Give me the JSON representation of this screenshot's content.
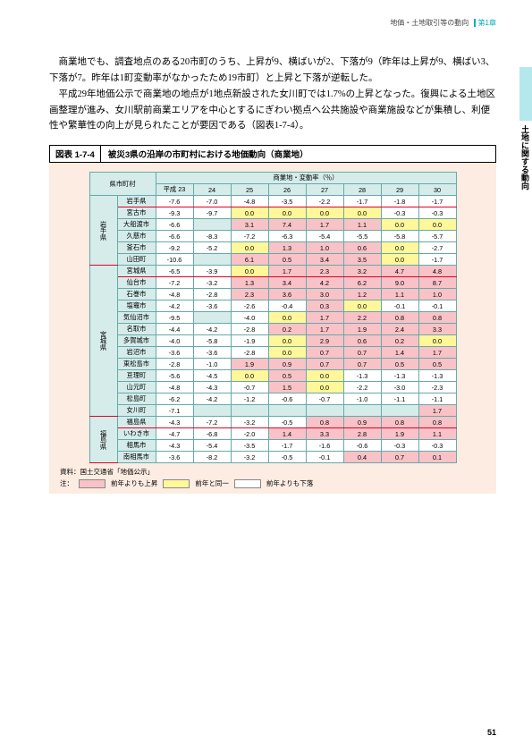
{
  "header": {
    "breadcrumb": "地価・土地取引等の動向",
    "chapter": "第1章"
  },
  "side_label": "土地に関する動向",
  "body": {
    "p1": "商業地でも、調査地点のある20市町のうち、上昇が9、横ばいが2、下落が9（昨年は上昇が9、横ばい3、下落が7。昨年は1町変動率がなかったため19市町）と上昇と下落が逆転した。",
    "p2": "平成29年地価公示で商業地の地点が1地点新設された女川町では1.7%の上昇となった。復興による土地区画整理が進み、女川駅前商業エリアを中心とするにぎわい拠点へ公共施設や商業施設などが集積し、利便性や繁華性の向上が見られたことが要因である（図表1-7-4）。"
  },
  "figure": {
    "number": "図表 1-7-4",
    "title": "被災3県の沿岸の市町村における地価動向（商業地）"
  },
  "table": {
    "top_header": {
      "c1": "県市町村",
      "c2": "商業地・変動率（％）"
    },
    "year_header": [
      "平成 23",
      "24",
      "25",
      "26",
      "27",
      "28",
      "29",
      "30"
    ],
    "groups": [
      {
        "pref": "岩手県",
        "hl_idx": 0,
        "rows": [
          {
            "city": "岩手県",
            "v": [
              {
                "t": "-7.6",
                "c": "d"
              },
              {
                "t": "-7.0",
                "c": "d"
              },
              {
                "t": "-4.8",
                "c": "d"
              },
              {
                "t": "-3.5",
                "c": "d"
              },
              {
                "t": "-2.2",
                "c": "d"
              },
              {
                "t": "-1.7",
                "c": "d"
              },
              {
                "t": "-1.8",
                "c": "d"
              },
              {
                "t": "-1.7",
                "c": "d"
              }
            ]
          },
          {
            "city": "宮古市",
            "v": [
              {
                "t": "-9.3",
                "c": "d"
              },
              {
                "t": "-9.7",
                "c": "d"
              },
              {
                "t": "0.0",
                "c": "f"
              },
              {
                "t": "0.0",
                "c": "f"
              },
              {
                "t": "0.0",
                "c": "f"
              },
              {
                "t": "0.0",
                "c": "f"
              },
              {
                "t": "-0.3",
                "c": "d"
              },
              {
                "t": "-0.3",
                "c": "d"
              }
            ]
          },
          {
            "city": "大船渡市",
            "v": [
              {
                "t": "-6.6",
                "c": "d"
              },
              {
                "t": "",
                "c": "n"
              },
              {
                "t": "3.1",
                "c": "u"
              },
              {
                "t": "7.4",
                "c": "u"
              },
              {
                "t": "1.7",
                "c": "u"
              },
              {
                "t": "1.1",
                "c": "u"
              },
              {
                "t": "0.0",
                "c": "f"
              },
              {
                "t": "0.0",
                "c": "f"
              }
            ]
          },
          {
            "city": "久慈市",
            "v": [
              {
                "t": "-6.6",
                "c": "d"
              },
              {
                "t": "-8.3",
                "c": "d"
              },
              {
                "t": "-7.2",
                "c": "d"
              },
              {
                "t": "-6.3",
                "c": "d"
              },
              {
                "t": "-5.4",
                "c": "d"
              },
              {
                "t": "-5.5",
                "c": "d"
              },
              {
                "t": "-5.8",
                "c": "d"
              },
              {
                "t": "-5.7",
                "c": "d"
              }
            ]
          },
          {
            "city": "釜石市",
            "v": [
              {
                "t": "-9.2",
                "c": "d"
              },
              {
                "t": "-5.2",
                "c": "d"
              },
              {
                "t": "0.0",
                "c": "f"
              },
              {
                "t": "1.3",
                "c": "u"
              },
              {
                "t": "1.0",
                "c": "u"
              },
              {
                "t": "0.6",
                "c": "u"
              },
              {
                "t": "0.0",
                "c": "f"
              },
              {
                "t": "-2.7",
                "c": "d"
              }
            ]
          },
          {
            "city": "山田町",
            "v": [
              {
                "t": "-10.6",
                "c": "d"
              },
              {
                "t": "",
                "c": "n"
              },
              {
                "t": "6.1",
                "c": "u"
              },
              {
                "t": "0.5",
                "c": "u"
              },
              {
                "t": "3.4",
                "c": "u"
              },
              {
                "t": "3.5",
                "c": "u"
              },
              {
                "t": "0.0",
                "c": "f"
              },
              {
                "t": "-1.7",
                "c": "d"
              }
            ]
          }
        ]
      },
      {
        "pref": "宮城県",
        "hl_idx": 0,
        "rows": [
          {
            "city": "宮城県",
            "v": [
              {
                "t": "-6.5",
                "c": "d"
              },
              {
                "t": "-3.9",
                "c": "d"
              },
              {
                "t": "0.0",
                "c": "f"
              },
              {
                "t": "1.7",
                "c": "u"
              },
              {
                "t": "2.3",
                "c": "u"
              },
              {
                "t": "3.2",
                "c": "u"
              },
              {
                "t": "4.7",
                "c": "u"
              },
              {
                "t": "4.8",
                "c": "u"
              }
            ]
          },
          {
            "city": "仙台市",
            "v": [
              {
                "t": "-7.2",
                "c": "d"
              },
              {
                "t": "-3.2",
                "c": "d"
              },
              {
                "t": "1.3",
                "c": "u"
              },
              {
                "t": "3.4",
                "c": "u"
              },
              {
                "t": "4.2",
                "c": "u"
              },
              {
                "t": "6.2",
                "c": "u"
              },
              {
                "t": "9.0",
                "c": "u"
              },
              {
                "t": "8.7",
                "c": "u"
              }
            ]
          },
          {
            "city": "石巻市",
            "v": [
              {
                "t": "-4.8",
                "c": "d"
              },
              {
                "t": "-2.8",
                "c": "d"
              },
              {
                "t": "2.3",
                "c": "u"
              },
              {
                "t": "3.6",
                "c": "u"
              },
              {
                "t": "3.0",
                "c": "u"
              },
              {
                "t": "1.2",
                "c": "u"
              },
              {
                "t": "1.1",
                "c": "u"
              },
              {
                "t": "1.0",
                "c": "u"
              }
            ]
          },
          {
            "city": "塩竈市",
            "v": [
              {
                "t": "-4.2",
                "c": "d"
              },
              {
                "t": "-3.6",
                "c": "d"
              },
              {
                "t": "-2.6",
                "c": "d"
              },
              {
                "t": "-0.4",
                "c": "d"
              },
              {
                "t": "0.3",
                "c": "u"
              },
              {
                "t": "0.0",
                "c": "f"
              },
              {
                "t": "-0.1",
                "c": "d"
              },
              {
                "t": "-0.1",
                "c": "d"
              }
            ]
          },
          {
            "city": "気仙沼市",
            "v": [
              {
                "t": "-9.5",
                "c": "d"
              },
              {
                "t": "",
                "c": "n"
              },
              {
                "t": "-4.0",
                "c": "d"
              },
              {
                "t": "0.0",
                "c": "f"
              },
              {
                "t": "1.7",
                "c": "u"
              },
              {
                "t": "2.2",
                "c": "u"
              },
              {
                "t": "0.8",
                "c": "u"
              },
              {
                "t": "0.8",
                "c": "u"
              }
            ]
          },
          {
            "city": "名取市",
            "v": [
              {
                "t": "-4.4",
                "c": "d"
              },
              {
                "t": "-4.2",
                "c": "d"
              },
              {
                "t": "-2.8",
                "c": "d"
              },
              {
                "t": "0.2",
                "c": "u"
              },
              {
                "t": "1.7",
                "c": "u"
              },
              {
                "t": "1.9",
                "c": "u"
              },
              {
                "t": "2.4",
                "c": "u"
              },
              {
                "t": "3.3",
                "c": "u"
              }
            ]
          },
          {
            "city": "多賀城市",
            "v": [
              {
                "t": "-4.0",
                "c": "d"
              },
              {
                "t": "-5.8",
                "c": "d"
              },
              {
                "t": "-1.9",
                "c": "d"
              },
              {
                "t": "0.0",
                "c": "f"
              },
              {
                "t": "2.9",
                "c": "u"
              },
              {
                "t": "0.6",
                "c": "u"
              },
              {
                "t": "0.2",
                "c": "u"
              },
              {
                "t": "0.0",
                "c": "f"
              }
            ]
          },
          {
            "city": "岩沼市",
            "v": [
              {
                "t": "-3.6",
                "c": "d"
              },
              {
                "t": "-3.6",
                "c": "d"
              },
              {
                "t": "-2.8",
                "c": "d"
              },
              {
                "t": "0.0",
                "c": "f"
              },
              {
                "t": "0.7",
                "c": "u"
              },
              {
                "t": "0.7",
                "c": "u"
              },
              {
                "t": "1.4",
                "c": "u"
              },
              {
                "t": "1.7",
                "c": "u"
              }
            ]
          },
          {
            "city": "東松島市",
            "v": [
              {
                "t": "-2.8",
                "c": "d"
              },
              {
                "t": "-1.0",
                "c": "d"
              },
              {
                "t": "1.9",
                "c": "u"
              },
              {
                "t": "0.9",
                "c": "u"
              },
              {
                "t": "0.7",
                "c": "u"
              },
              {
                "t": "0.7",
                "c": "u"
              },
              {
                "t": "0.5",
                "c": "u"
              },
              {
                "t": "0.5",
                "c": "u"
              }
            ]
          },
          {
            "city": "亘理町",
            "v": [
              {
                "t": "-5.6",
                "c": "d"
              },
              {
                "t": "-4.5",
                "c": "d"
              },
              {
                "t": "0.0",
                "c": "f"
              },
              {
                "t": "0.5",
                "c": "u"
              },
              {
                "t": "0.0",
                "c": "f"
              },
              {
                "t": "-1.3",
                "c": "d"
              },
              {
                "t": "-1.3",
                "c": "d"
              },
              {
                "t": "-1.3",
                "c": "d"
              }
            ]
          },
          {
            "city": "山元町",
            "v": [
              {
                "t": "-4.8",
                "c": "d"
              },
              {
                "t": "-4.3",
                "c": "d"
              },
              {
                "t": "-0.7",
                "c": "d"
              },
              {
                "t": "1.5",
                "c": "u"
              },
              {
                "t": "0.0",
                "c": "f"
              },
              {
                "t": "-2.2",
                "c": "d"
              },
              {
                "t": "-3.0",
                "c": "d"
              },
              {
                "t": "-2.3",
                "c": "d"
              }
            ]
          },
          {
            "city": "松島町",
            "v": [
              {
                "t": "-6.2",
                "c": "d"
              },
              {
                "t": "-4.2",
                "c": "d"
              },
              {
                "t": "-1.2",
                "c": "d"
              },
              {
                "t": "-0.6",
                "c": "d"
              },
              {
                "t": "-0.7",
                "c": "d"
              },
              {
                "t": "-1.0",
                "c": "d"
              },
              {
                "t": "-1.1",
                "c": "d"
              },
              {
                "t": "-1.1",
                "c": "d"
              }
            ]
          },
          {
            "city": "女川町",
            "v": [
              {
                "t": "-7.1",
                "c": "d"
              },
              {
                "t": "",
                "c": "n"
              },
              {
                "t": "",
                "c": "n"
              },
              {
                "t": "",
                "c": "n"
              },
              {
                "t": "",
                "c": "n"
              },
              {
                "t": "",
                "c": "n"
              },
              {
                "t": "",
                "c": "n"
              },
              {
                "t": "1.7",
                "c": "u"
              }
            ]
          }
        ]
      },
      {
        "pref": "福島県",
        "hl_idx": 0,
        "rows": [
          {
            "city": "福島県",
            "v": [
              {
                "t": "-4.3",
                "c": "d"
              },
              {
                "t": "-7.2",
                "c": "d"
              },
              {
                "t": "-3.2",
                "c": "d"
              },
              {
                "t": "-0.5",
                "c": "d"
              },
              {
                "t": "0.8",
                "c": "u"
              },
              {
                "t": "0.9",
                "c": "u"
              },
              {
                "t": "0.8",
                "c": "u"
              },
              {
                "t": "0.8",
                "c": "u"
              }
            ]
          },
          {
            "city": "いわき市",
            "v": [
              {
                "t": "-4.7",
                "c": "d"
              },
              {
                "t": "-6.8",
                "c": "d"
              },
              {
                "t": "-2.0",
                "c": "d"
              },
              {
                "t": "1.4",
                "c": "u"
              },
              {
                "t": "3.3",
                "c": "u"
              },
              {
                "t": "2.8",
                "c": "u"
              },
              {
                "t": "1.9",
                "c": "u"
              },
              {
                "t": "1.1",
                "c": "u"
              }
            ]
          },
          {
            "city": "相馬市",
            "v": [
              {
                "t": "-4.3",
                "c": "d"
              },
              {
                "t": "-5.4",
                "c": "d"
              },
              {
                "t": "-3.5",
                "c": "d"
              },
              {
                "t": "-1.7",
                "c": "d"
              },
              {
                "t": "-1.6",
                "c": "d"
              },
              {
                "t": "-0.6",
                "c": "d"
              },
              {
                "t": "-0.3",
                "c": "d"
              },
              {
                "t": "-0.3",
                "c": "d"
              }
            ]
          },
          {
            "city": "南相馬市",
            "v": [
              {
                "t": "-3.6",
                "c": "d"
              },
              {
                "t": "-8.2",
                "c": "d"
              },
              {
                "t": "-3.2",
                "c": "d"
              },
              {
                "t": "-0.5",
                "c": "d"
              },
              {
                "t": "-0.1",
                "c": "d"
              },
              {
                "t": "0.4",
                "c": "u"
              },
              {
                "t": "0.7",
                "c": "u"
              },
              {
                "t": "0.1",
                "c": "u"
              }
            ]
          }
        ]
      }
    ]
  },
  "source": "資料：国土交通省「地価公示」",
  "legend": {
    "label": "注：",
    "items": [
      {
        "color": "#f9c2c7",
        "text": "前年よりも上昇"
      },
      {
        "color": "#fff799",
        "text": "前年と同一"
      },
      {
        "color": "#ffffff",
        "text": "前年よりも下落"
      }
    ]
  },
  "page_number": "51"
}
